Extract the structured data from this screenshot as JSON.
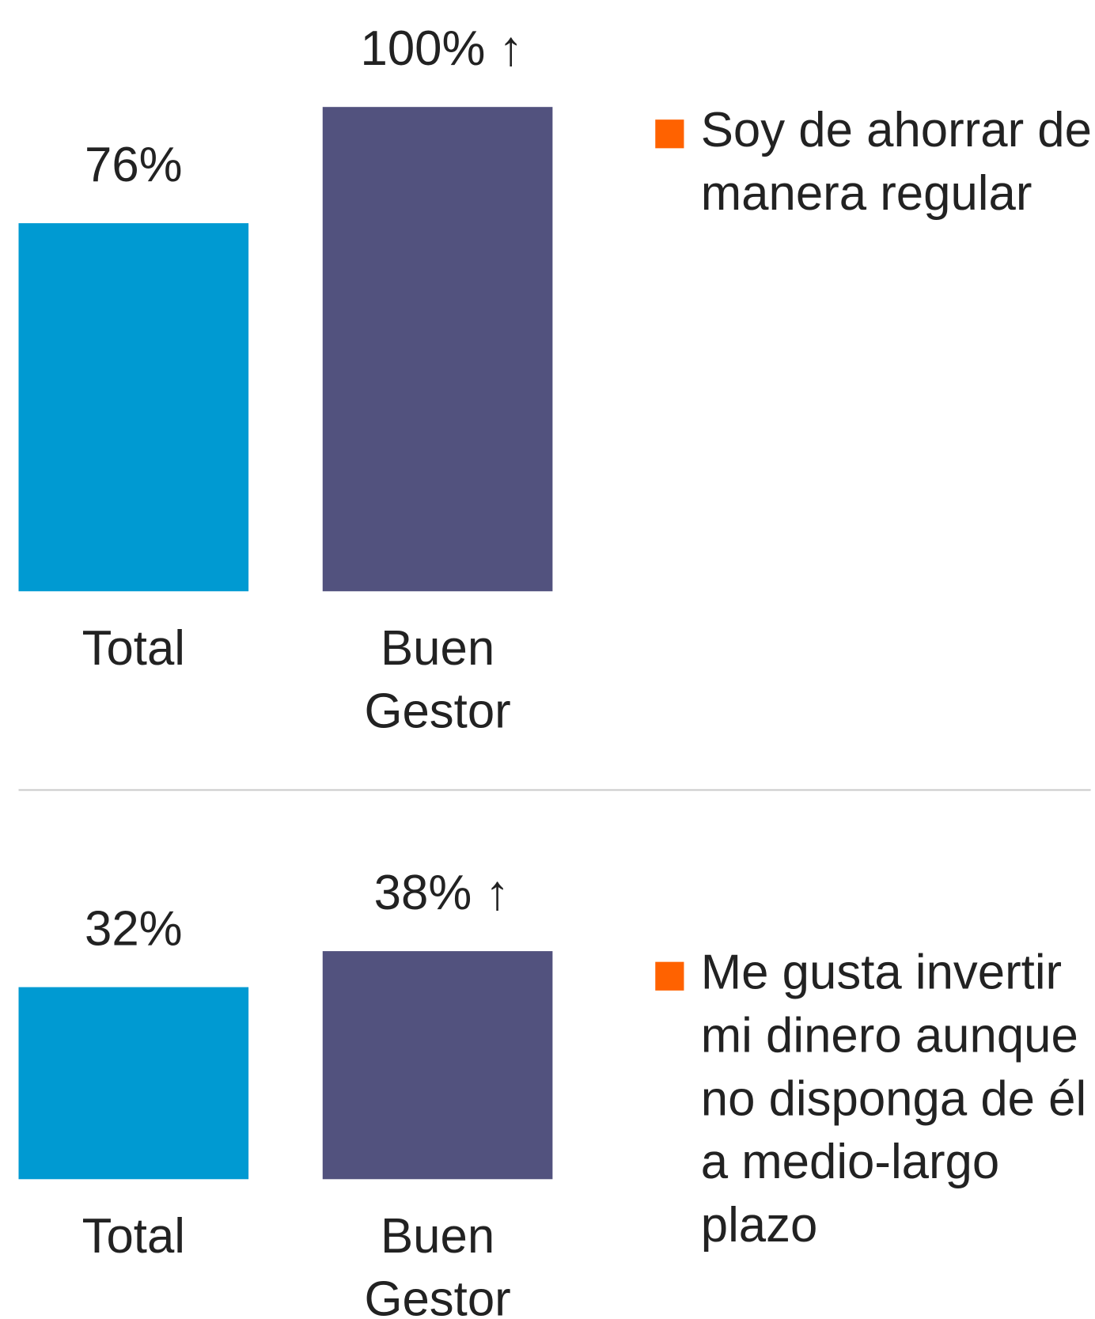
{
  "chart_data": [
    {
      "type": "bar",
      "categories": [
        "Total",
        "Buen Gestor"
      ],
      "values": [
        76,
        100
      ],
      "value_labels": [
        "76%",
        "100%"
      ],
      "colors": [
        "#009ad2",
        "#52527e"
      ],
      "annotation": "↑",
      "ylim": [
        0,
        100
      ],
      "series_name": "Soy de ahorrar de manera regular",
      "legend_color": "#ff6200"
    },
    {
      "type": "bar",
      "categories": [
        "Total",
        "Buen Gestor"
      ],
      "values": [
        32,
        38
      ],
      "value_labels": [
        "32%",
        "38%"
      ],
      "colors": [
        "#009ad2",
        "#52527e"
      ],
      "annotation": "↑",
      "ylim": [
        0,
        40
      ],
      "series_name": "Me gusta invertir mi dinero aunque no disponga de él a medio-largo plazo",
      "legend_color": "#ff6200"
    }
  ]
}
